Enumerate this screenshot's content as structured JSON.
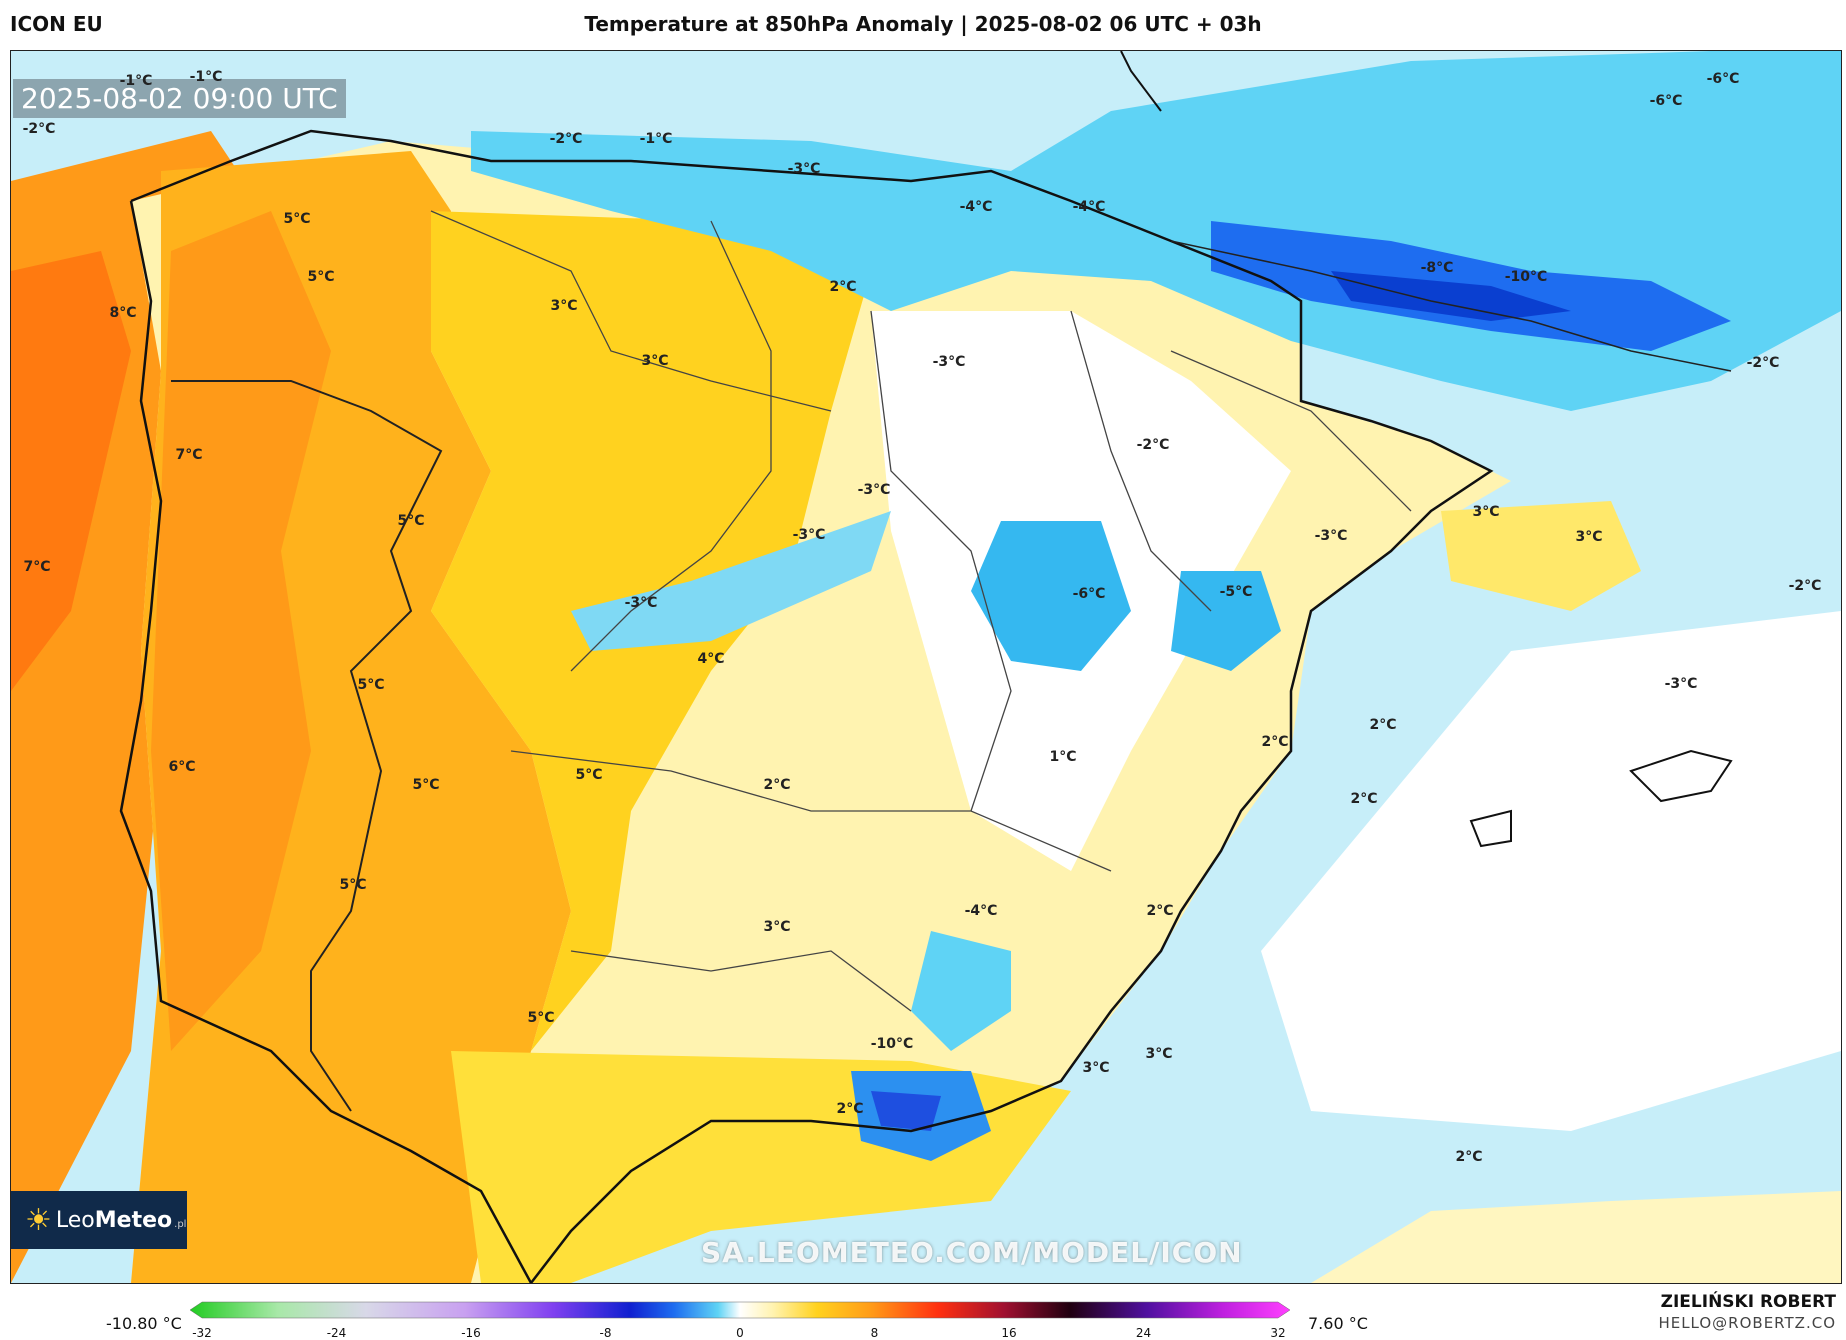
{
  "header": {
    "model": "ICON EU",
    "title": "Temperature at 850hPa Anomaly | 2025-08-02 06 UTC + 03h"
  },
  "map": {
    "timestamp": "2025-08-02 09:00 UTC",
    "watermark": "SA.LEOMETEO.COM/MODEL/ICON",
    "labels": [
      {
        "text": "-1°C"
      },
      {
        "text": "-1°C"
      },
      {
        "text": "-2°C"
      },
      {
        "text": "-2°C"
      },
      {
        "text": "-1°C"
      },
      {
        "text": "-3°C"
      },
      {
        "text": "-4°C"
      },
      {
        "text": "-4°C"
      },
      {
        "text": "-6°C"
      },
      {
        "text": "-6°C"
      },
      {
        "text": "-8°C"
      },
      {
        "text": "-10°C"
      },
      {
        "text": "-2°C"
      },
      {
        "text": "5°C"
      },
      {
        "text": "5°C"
      },
      {
        "text": "8°C"
      },
      {
        "text": "3°C"
      },
      {
        "text": "2°C"
      },
      {
        "text": "3°C"
      },
      {
        "text": "-3°C"
      },
      {
        "text": "-2°C"
      },
      {
        "text": "7°C"
      },
      {
        "text": "5°C"
      },
      {
        "text": "-3°C"
      },
      {
        "text": "-3°C"
      },
      {
        "text": "3°C"
      },
      {
        "text": "3°C"
      },
      {
        "text": "-3°C"
      },
      {
        "text": "7°C"
      },
      {
        "text": "-3°C"
      },
      {
        "text": "-6°C"
      },
      {
        "text": "-5°C"
      },
      {
        "text": "-2°C"
      },
      {
        "text": "4°C"
      },
      {
        "text": "5°C"
      },
      {
        "text": "-3°C"
      },
      {
        "text": "2°C"
      },
      {
        "text": "2°C"
      },
      {
        "text": "1°C"
      },
      {
        "text": "6°C"
      },
      {
        "text": "5°C"
      },
      {
        "text": "5°C"
      },
      {
        "text": "2°C"
      },
      {
        "text": "2°C"
      },
      {
        "text": "5°C"
      },
      {
        "text": "-4°C"
      },
      {
        "text": "2°C"
      },
      {
        "text": "3°C"
      },
      {
        "text": "5°C"
      },
      {
        "text": "-10°C"
      },
      {
        "text": "3°C"
      },
      {
        "text": "3°C"
      },
      {
        "text": "2°C"
      },
      {
        "text": "2°C"
      }
    ]
  },
  "logo": {
    "prefix": "Leo",
    "brand": "Meteo",
    "suffix": ".pl"
  },
  "legend": {
    "min": "-10.80 °C",
    "max": "7.60 °C",
    "ticks": [
      "-32",
      "-24",
      "-16",
      "-8",
      "0",
      "8",
      "16",
      "24",
      "32"
    ],
    "tick_values": [
      -32,
      -24,
      -16,
      -8,
      0,
      8,
      16,
      24,
      32
    ],
    "range": [
      -32,
      32
    ]
  },
  "credits": {
    "author": "ZIELIŃSKI ROBERT",
    "email": "HELLO@ROBERTZ.CO"
  }
}
